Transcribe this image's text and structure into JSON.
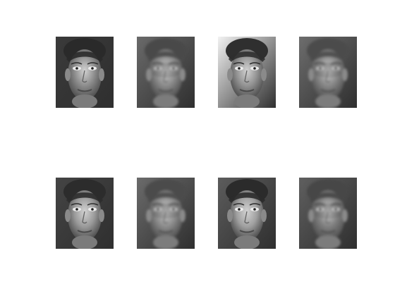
{
  "figure": {
    "rows": 2,
    "cols": 4,
    "tiles": [
      {
        "row": 0,
        "col": 0,
        "kind": "original",
        "tone": "#8c8c8c",
        "hair": "#2a2a2a",
        "bg": "#3a3a3a"
      },
      {
        "row": 0,
        "col": 1,
        "kind": "reconstruction",
        "tone": "#8a8a8a",
        "hair": "#4a4a4a",
        "bg": "#6a6a6a"
      },
      {
        "row": 0,
        "col": 2,
        "kind": "original",
        "tone": "#939393",
        "hair": "#2f2f2f",
        "bg": "#f2f2f2"
      },
      {
        "row": 0,
        "col": 3,
        "kind": "reconstruction",
        "tone": "#878787",
        "hair": "#4c4c4c",
        "bg": "#6d6d6d"
      },
      {
        "row": 1,
        "col": 0,
        "kind": "original",
        "tone": "#9a9a9a",
        "hair": "#2c2c2c",
        "bg": "#444444"
      },
      {
        "row": 1,
        "col": 1,
        "kind": "reconstruction",
        "tone": "#8b8b8b",
        "hair": "#4b4b4b",
        "bg": "#6b6b6b"
      },
      {
        "row": 1,
        "col": 2,
        "kind": "original",
        "tone": "#a0a0a0",
        "hair": "#2b2b2b",
        "bg": "#5c5c5c"
      },
      {
        "row": 1,
        "col": 3,
        "kind": "reconstruction",
        "tone": "#7f7f7f",
        "hair": "#474747",
        "bg": "#5f5f5f"
      }
    ]
  }
}
